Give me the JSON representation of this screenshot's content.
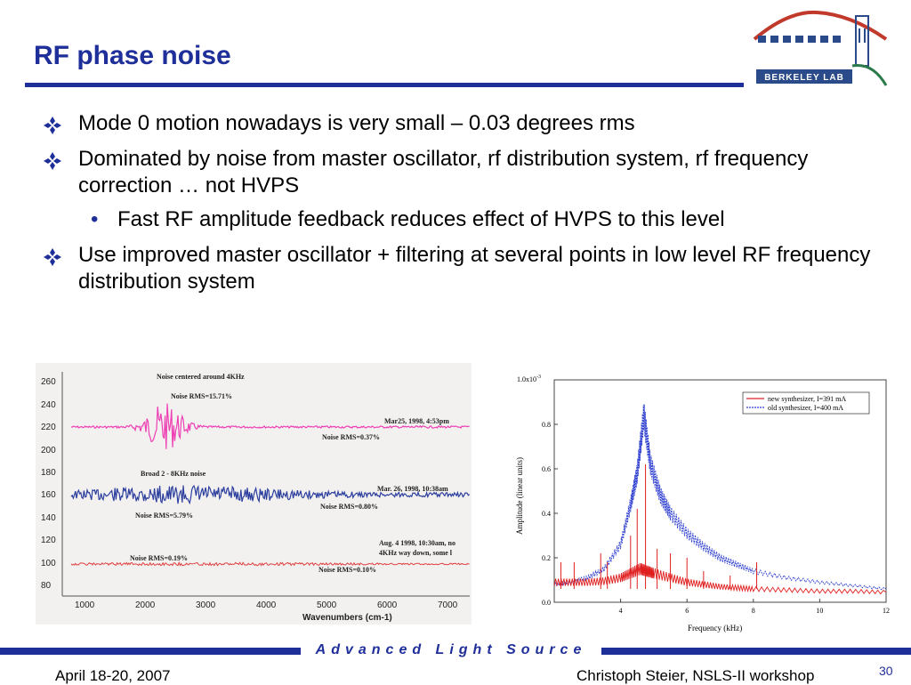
{
  "slide": {
    "title": "RF phase noise",
    "bullets": [
      {
        "text": "Mode 0 motion nowadays is very small – 0.03 degrees rms"
      },
      {
        "text": "Dominated by noise from master oscillator, rf distribution system, rf frequency correction … not HVPS"
      },
      {
        "text": "Fast RF amplitude feedback reduces effect of HVPS to this level"
      },
      {
        "text": "Use improved master oscillator + filtering at several points in low level RF frequency distribution system"
      }
    ]
  },
  "logo": {
    "text": "BERKELEY LAB"
  },
  "scan_chart": {
    "yticks": [
      "260",
      "240",
      "220",
      "200",
      "180",
      "160",
      "140",
      "120",
      "100",
      "80"
    ],
    "xticks": [
      "1000",
      "2000",
      "3000",
      "4000",
      "5000",
      "6000",
      "7000"
    ],
    "xlabel": "Wavenumbers (cm-1)",
    "annotations": [
      "Noise centered around 4KHz",
      "Noise RMS=15.71%",
      "Mar25, 1998, 4:53pm",
      "Noise RMS=0.37%",
      "Broad 2 - 8KHz noise",
      "Mar. 26, 1998, 10:38am",
      "Noise RMS=5.79%",
      "Noise RMS=0.80%",
      "Aug. 4 1998, 10:30am, no",
      "4KHz way down, some l",
      "Noise RMS=0.19%",
      "Noise RMS=0.10%"
    ],
    "colors": {
      "trace1": "#ee3fb4",
      "trace2": "#2d3f9e",
      "trace3": "#e04040"
    }
  },
  "chart_data": {
    "type": "line",
    "title": "",
    "xlabel": "Frequency (kHz)",
    "ylabel": "Amplitude (linear units)",
    "y_multiplier_label": "1.0x10",
    "y_multiplier_exp": "-3",
    "xlim": [
      2,
      12
    ],
    "ylim": [
      0,
      1.0
    ],
    "xticks": [
      "4",
      "6",
      "8",
      "10",
      "12"
    ],
    "yticks": [
      "0.0",
      "0.2",
      "0.4",
      "0.6",
      "0.8"
    ],
    "legend_position": "top-right",
    "series": [
      {
        "name": "new synthesizer, I=391 mA",
        "color": "#e02020",
        "x": [
          2.0,
          2.5,
          3.0,
          3.5,
          4.0,
          4.3,
          4.6,
          4.8,
          5.0,
          5.5,
          6.0,
          6.5,
          7.0,
          7.5,
          8.0,
          9.0,
          10.0,
          11.0,
          12.0
        ],
        "y": [
          0.09,
          0.09,
          0.09,
          0.095,
          0.11,
          0.13,
          0.15,
          0.14,
          0.13,
          0.11,
          0.09,
          0.08,
          0.07,
          0.065,
          0.06,
          0.055,
          0.05,
          0.05,
          0.045
        ],
        "spikes": [
          {
            "x": 2.2,
            "y": 0.18
          },
          {
            "x": 2.6,
            "y": 0.18
          },
          {
            "x": 3.4,
            "y": 0.22
          },
          {
            "x": 3.6,
            "y": 0.18
          },
          {
            "x": 4.3,
            "y": 0.3
          },
          {
            "x": 4.5,
            "y": 0.42
          },
          {
            "x": 4.75,
            "y": 0.62
          },
          {
            "x": 5.1,
            "y": 0.24
          },
          {
            "x": 5.5,
            "y": 0.22
          },
          {
            "x": 6.0,
            "y": 0.2
          },
          {
            "x": 6.5,
            "y": 0.14
          },
          {
            "x": 7.3,
            "y": 0.12
          },
          {
            "x": 8.1,
            "y": 0.18
          }
        ]
      },
      {
        "name": "old synthesizer, I=400 mA",
        "color": "#3040d0",
        "x": [
          2.0,
          2.5,
          3.0,
          3.5,
          4.0,
          4.3,
          4.5,
          4.7,
          4.9,
          5.2,
          5.5,
          6.0,
          6.5,
          7.0,
          7.5,
          8.0,
          9.0,
          10.0,
          11.0,
          12.0
        ],
        "y": [
          0.08,
          0.09,
          0.11,
          0.15,
          0.26,
          0.44,
          0.58,
          0.84,
          0.62,
          0.48,
          0.4,
          0.31,
          0.25,
          0.2,
          0.17,
          0.14,
          0.11,
          0.09,
          0.075,
          0.06
        ]
      }
    ]
  },
  "footer": {
    "center": "Advanced Light Source",
    "date": "April 18-20, 2007",
    "author": "Christoph Steier, NSLS-II workshop",
    "page": "30"
  },
  "colors": {
    "accent": "#1f2f9a"
  }
}
